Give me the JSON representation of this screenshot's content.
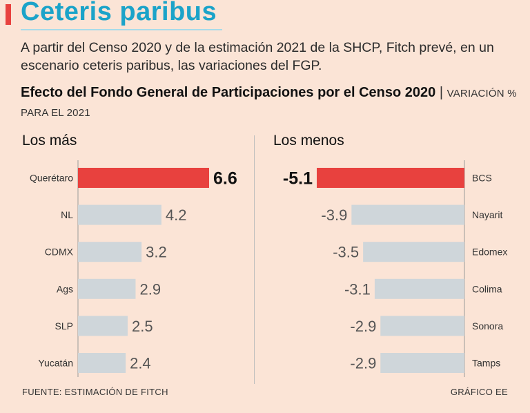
{
  "header": {
    "title": "Ceteris paribus",
    "subtitle": "A partir del Censo 2020 y de la estimación 2021 de la SHCP, Fitch prevé, en un escenario ceteris paribus, las variaciones del FGP."
  },
  "chart_heading": {
    "title": "Efecto del Fondo General de Participaciones por el Censo 2020",
    "separator": "|",
    "unit": "VARIACIÓN % PARA EL 2021"
  },
  "colors": {
    "title": "#1ba3c9",
    "highlight": "#e8413e",
    "bar": "#cfd6da",
    "background": "#fbe4d6"
  },
  "chart_data": [
    {
      "type": "bar",
      "orientation": "horizontal",
      "panel_title": "Los más",
      "categories": [
        "Querétaro",
        "NL",
        "CDMX",
        "Ags",
        "SLP",
        "Yucatán"
      ],
      "values": [
        6.6,
        4.2,
        3.2,
        2.9,
        2.5,
        2.4
      ],
      "value_labels": [
        "6.6",
        "4.2",
        "3.2",
        "2.9",
        "2.5",
        "2.4"
      ],
      "highlight_index": 0,
      "xlim": [
        0,
        6.6
      ]
    },
    {
      "type": "bar",
      "orientation": "horizontal",
      "panel_title": "Los menos",
      "categories": [
        "BCS",
        "Nayarit",
        "Edomex",
        "Colima",
        "Sonora",
        "Tamps"
      ],
      "values": [
        -5.1,
        -3.9,
        -3.5,
        -3.1,
        -2.9,
        -2.9
      ],
      "value_labels": [
        "-5.1",
        "-3.9",
        "-3.5",
        "-3.1",
        "-2.9",
        "-2.9"
      ],
      "highlight_index": 0,
      "xlim": [
        -5.1,
        0
      ]
    }
  ],
  "footer": {
    "source": "FUENTE: ESTIMACIÓN DE FITCH",
    "credit": "GRÁFICO EE"
  }
}
